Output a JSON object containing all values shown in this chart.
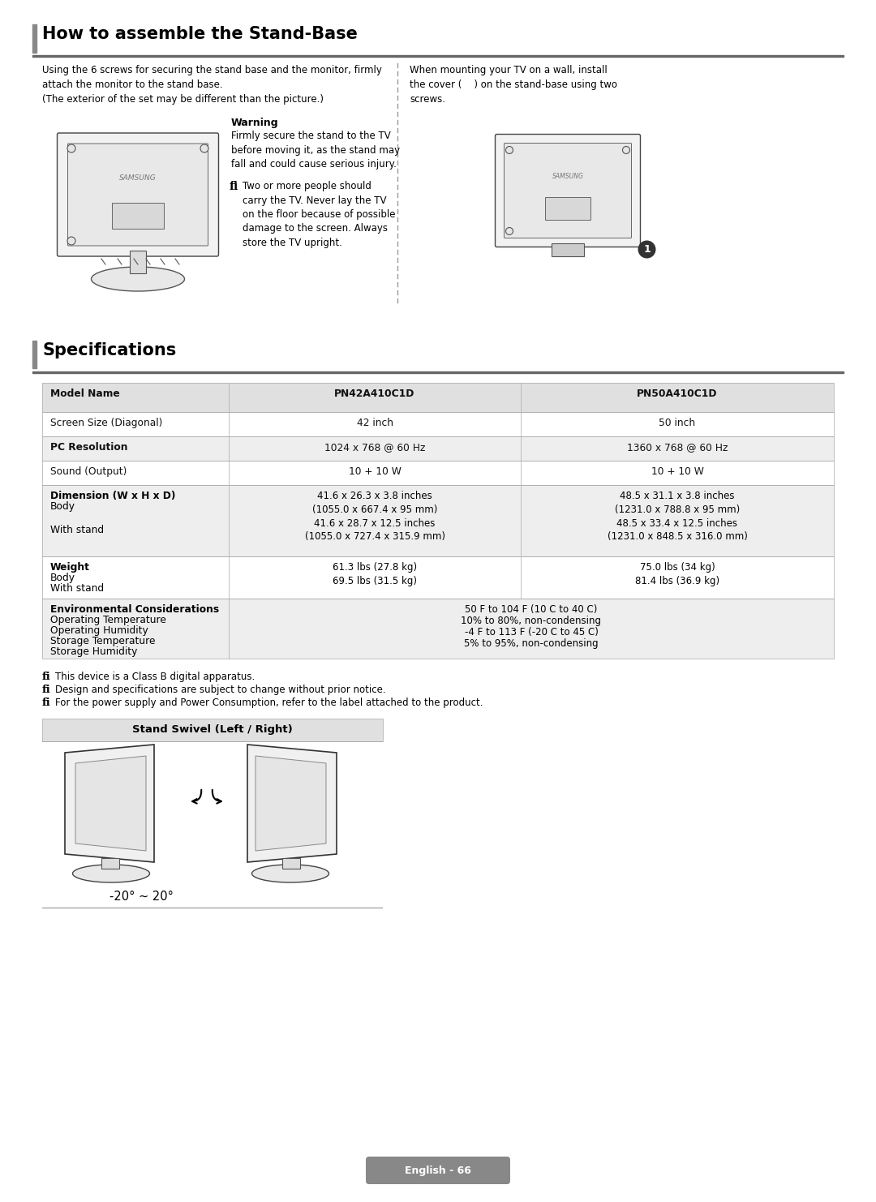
{
  "bg_color": "#ffffff",
  "page_title": "How to assemble the Stand-Base",
  "spec_title": "Specifications",
  "section1_text_left": "Using the 6 screws for securing the stand base and the monitor, firmly\nattach the monitor to the stand base.\n(The exterior of the set may be different than the picture.)",
  "section1_text_right": "When mounting your TV on a wall, install\nthe cover (    ) on the stand-base using two\nscrews.",
  "warning_title": "Warning",
  "warning_text": "Firmly secure the stand to the TV\nbefore moving it, as the stand may\nfall and could cause serious injury.",
  "fi_text1": "Two or more people should\ncarry the TV. Never lay the TV\non the floor because of possible\ndamage to the screen. Always\nstore the TV upright.",
  "table_headers": [
    "Model Name",
    "PN42A410C1D",
    "PN50A410C1D"
  ],
  "table_rows": [
    [
      "Screen Size (Diagonal)",
      "42 inch",
      "50 inch"
    ],
    [
      "PC Resolution",
      "1024 x 768 @ 60 Hz",
      "1360 x 768 @ 60 Hz"
    ],
    [
      "Sound (Output)",
      "10 + 10 W",
      "10 + 10 W"
    ],
    [
      "Dimension (W x H x D)\nBody\n\nWith stand",
      "41.6 x 26.3 x 3.8 inches\n(1055.0 x 667.4 x 95 mm)\n41.6 x 28.7 x 12.5 inches\n(1055.0 x 727.4 x 315.9 mm)",
      "48.5 x 31.1 x 3.8 inches\n(1231.0 x 788.8 x 95 mm)\n48.5 x 33.4 x 12.5 inches\n(1231.0 x 848.5 x 316.0 mm)"
    ],
    [
      "Weight\nBody\nWith stand",
      "61.3 lbs (27.8 kg)\n69.5 lbs (31.5 kg)",
      "75.0 lbs (34 kg)\n81.4 lbs (36.9 kg)"
    ],
    [
      "Environmental Considerations\nOperating Temperature\nOperating Humidity\nStorage Temperature\nStorage Humidity",
      "50 F to 104 F (10 C to 40 C)\n10% to 80%, non-condensing\n-4 F to 113 F (-20 C to 45 C)\n5% to 95%, non-condensing",
      ""
    ]
  ],
  "notes": [
    "This device is a Class B digital apparatus.",
    "Design and specifications are subject to change without prior notice.",
    "For the power supply and Power Consumption, refer to the label attached to the product."
  ],
  "swivel_title": "Stand Swivel (Left / Right)",
  "swivel_angle": "-20° ~ 20°",
  "page_number": "English - 66",
  "header_bg": "#e0e0e0",
  "row_bg_even": "#eeeeee",
  "row_bg_odd": "#ffffff",
  "table_border": "#aaaaaa",
  "title_bar_color": "#555555",
  "accent_bar_color": "#888888"
}
